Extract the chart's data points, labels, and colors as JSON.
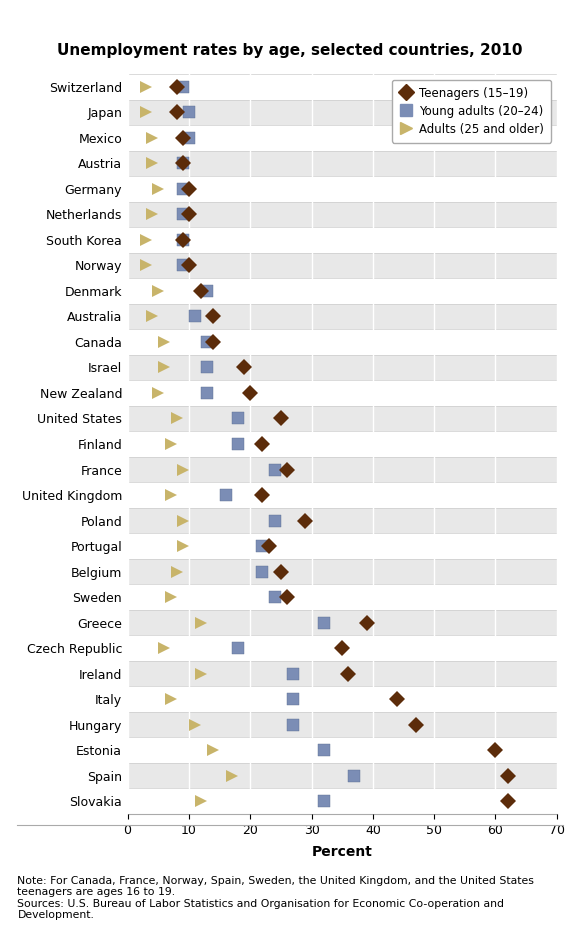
{
  "title": "Unemployment rates by age, selected countries, 2010",
  "countries": [
    "Switzerland",
    "Japan",
    "Mexico",
    "Austria",
    "Germany",
    "Netherlands",
    "South Korea",
    "Norway",
    "Denmark",
    "Australia",
    "Canada",
    "Israel",
    "New Zealand",
    "United States",
    "Finland",
    "France",
    "United Kingdom",
    "Poland",
    "Portugal",
    "Belgium",
    "Sweden",
    "Greece",
    "Czech Republic",
    "Ireland",
    "Italy",
    "Hungary",
    "Estonia",
    "Spain",
    "Slovakia"
  ],
  "teenagers": [
    8,
    8,
    9,
    9,
    10,
    10,
    9,
    10,
    12,
    14,
    14,
    19,
    20,
    25,
    22,
    26,
    22,
    29,
    23,
    25,
    26,
    39,
    35,
    36,
    44,
    47,
    60,
    62,
    62
  ],
  "young_adults": [
    9,
    10,
    10,
    9,
    9,
    9,
    9,
    9,
    13,
    11,
    13,
    13,
    13,
    18,
    18,
    24,
    16,
    24,
    22,
    22,
    24,
    32,
    18,
    27,
    27,
    27,
    32,
    37,
    32
  ],
  "adults": [
    3,
    3,
    4,
    4,
    5,
    4,
    3,
    3,
    5,
    4,
    6,
    6,
    5,
    8,
    7,
    9,
    7,
    9,
    9,
    8,
    7,
    12,
    6,
    12,
    7,
    11,
    14,
    17,
    12
  ],
  "teen_color": "#5C2C0A",
  "young_color": "#7B8DB5",
  "adult_color": "#C8B46A",
  "xlim": [
    0,
    70
  ],
  "xticks": [
    0,
    10,
    20,
    30,
    40,
    50,
    60,
    70
  ],
  "xlabel": "Percent",
  "note": "Note: For Canada, France, Norway, Spain, Sweden, the United Kingdom, and the United States\nteenagers are ages 16 to 19.\nSources: U.S. Bureau of Labor Statistics and Organisation for Economic Co-operation and\nDevelopment.",
  "row_bg_odd": "#FFFFFF",
  "row_bg_even": "#E8E8E8",
  "bg_white": "#FFFFFF"
}
